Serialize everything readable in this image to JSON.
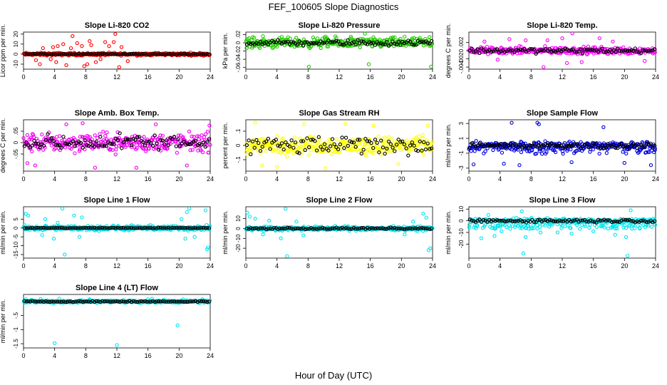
{
  "title": "FEF_100605  Slope Diagnostics",
  "xlabel": "Hour of Day (UTC)",
  "chart_data": [
    {
      "type": "scatter",
      "title": "Slope Li-820 CO2",
      "ylabel": "Licor ppm per min.",
      "color": "#ff0000",
      "xlim": [
        0,
        24
      ],
      "xticks": [
        0,
        4,
        8,
        12,
        16,
        20,
        24
      ],
      "ylim": [
        -15,
        22
      ],
      "yticks": [
        -10,
        0,
        10,
        20
      ],
      "band": 2,
      "outliers": [
        [
          1.6,
          -6
        ],
        [
          2.1,
          -10
        ],
        [
          3.5,
          -5
        ],
        [
          4.2,
          -8
        ],
        [
          5.5,
          -11
        ],
        [
          6.3,
          18
        ],
        [
          7.8,
          -12
        ],
        [
          8.2,
          -10
        ],
        [
          9.3,
          -8
        ],
        [
          10.5,
          12
        ],
        [
          11.8,
          20
        ],
        [
          12.3,
          -13
        ],
        [
          13.4,
          -7
        ],
        [
          3.8,
          7
        ],
        [
          4.4,
          8
        ],
        [
          5.1,
          10
        ],
        [
          6.9,
          11
        ],
        [
          8.7,
          9
        ],
        [
          11,
          8
        ],
        [
          11.6,
          12
        ],
        [
          2.5,
          6
        ],
        [
          6.1,
          6
        ],
        [
          7.5,
          8
        ],
        [
          12.6,
          7
        ],
        [
          9.9,
          -5
        ],
        [
          8.5,
          13
        ]
      ],
      "black_spread": 0.8
    },
    {
      "type": "scatter",
      "title": "Slope Li-820 Pressure",
      "ylabel": "kPa per min.",
      "color": "#22cc00",
      "xlim": [
        0,
        24
      ],
      "xticks": [
        0,
        4,
        8,
        12,
        16,
        20,
        24
      ],
      "ylim": [
        -0.064,
        0.026
      ],
      "yticks": [
        -0.06,
        -0.04,
        -0.02,
        0,
        0.02
      ],
      "band": 0.018,
      "outliers": [
        [
          8.1,
          -0.058
        ],
        [
          15.8,
          -0.052
        ],
        [
          23.8,
          -0.058
        ],
        [
          15.3,
          0.022
        ],
        [
          10.2,
          0.015
        ],
        [
          2.2,
          0.016
        ],
        [
          13.5,
          0.015
        ],
        [
          20.4,
          0.015
        ],
        [
          23.6,
          0.014
        ]
      ],
      "black_spread": 0.01
    },
    {
      "type": "scatter",
      "title": "Slope Li-820 Temp.",
      "ylabel": "degrees C per min.",
      "color": "#ff00ff",
      "xlim": [
        0,
        24
      ],
      "xticks": [
        0,
        4,
        8,
        12,
        16,
        20,
        24
      ],
      "ylim": [
        -0.0045,
        0.0045
      ],
      "yticks": [
        -0.004,
        -0.002,
        0,
        0.002
      ],
      "band": 0.0013,
      "outliers": [
        [
          13.3,
          0.0042
        ],
        [
          9.6,
          -0.004
        ],
        [
          12.6,
          -0.003
        ],
        [
          5.2,
          0.0028
        ],
        [
          16.8,
          0.003
        ],
        [
          10.1,
          0.0025
        ],
        [
          22.6,
          -0.0025
        ],
        [
          7.3,
          0.0025
        ],
        [
          2,
          0.0022
        ],
        [
          14.5,
          -0.0028
        ],
        [
          18.5,
          0.0022
        ],
        [
          3.7,
          -0.0022
        ],
        [
          12,
          0.003
        ]
      ],
      "black_spread": 0.0009
    },
    {
      "type": "scatter",
      "title": "Slope Amb. Box Temp.",
      "ylabel": "degrees C per min.",
      "color": "#ee00ee",
      "xlim": [
        0,
        24
      ],
      "xticks": [
        0,
        4,
        8,
        12,
        16,
        20,
        24
      ],
      "ylim": [
        -0.125,
        0.1
      ],
      "yticks": [
        -0.05,
        0,
        0.05
      ],
      "band": 0.06,
      "outliers": [
        [
          0.5,
          -0.09
        ],
        [
          1.5,
          -0.1
        ],
        [
          7.6,
          0.085
        ],
        [
          9.2,
          -0.11
        ],
        [
          21,
          -0.1
        ],
        [
          23.9,
          0.075
        ],
        [
          5.5,
          0.08
        ],
        [
          14.5,
          -0.11
        ],
        [
          17,
          0.08
        ]
      ],
      "black_spread": 0.05
    },
    {
      "type": "scatter",
      "title": "Slope Gas Stream RH",
      "ylabel": "percent per min.",
      "color": "#ffff00",
      "xlim": [
        0,
        24
      ],
      "xticks": [
        0,
        4,
        8,
        12,
        16,
        20,
        24
      ],
      "ylim": [
        -0.18,
        0.18
      ],
      "yticks": [
        -0.1,
        0,
        0.1
      ],
      "band": 0.09,
      "outliers": [
        [
          1.2,
          0.16
        ],
        [
          2.1,
          -0.14
        ],
        [
          4,
          -0.15
        ],
        [
          7.5,
          0.15
        ],
        [
          10.2,
          -0.16
        ],
        [
          12.8,
          0.15
        ],
        [
          16.4,
          0.14
        ],
        [
          19.6,
          -0.13
        ],
        [
          23.4,
          0.14
        ]
      ],
      "black_spread": 0.09
    },
    {
      "type": "scatter",
      "title": "Slope Sample Flow",
      "ylabel": "ml/min per min.",
      "color": "#0000dd",
      "xlim": [
        0,
        24
      ],
      "xticks": [
        0,
        4,
        8,
        12,
        16,
        20,
        24
      ],
      "ylim": [
        -3.4,
        3.5
      ],
      "yticks": [
        -3,
        -1,
        1,
        3
      ],
      "band": 0.8,
      "secondary_band": [
        -1.1,
        0.4
      ],
      "outliers": [
        [
          5.5,
          3.1
        ],
        [
          8.8,
          3.1
        ],
        [
          9,
          2.9
        ],
        [
          17.3,
          2.5
        ],
        [
          0.6,
          -2.5
        ],
        [
          4.5,
          -2.4
        ],
        [
          6.5,
          -2.6
        ],
        [
          23.4,
          -2.6
        ],
        [
          13.2,
          -2.2
        ],
        [
          20,
          -2.3
        ]
      ],
      "black_spread": 0.6
    },
    {
      "type": "scatter",
      "title": "Slope Line 1 Flow",
      "ylabel": "ml/min per min.",
      "color": "#00e5ee",
      "xlim": [
        0,
        24
      ],
      "xticks": [
        0,
        4,
        8,
        12,
        16,
        20,
        24
      ],
      "ylim": [
        -17,
        12
      ],
      "yticks": [
        -15,
        -10,
        -5,
        0,
        5
      ],
      "band": 2,
      "outliers": [
        [
          0.3,
          8
        ],
        [
          0.6,
          7
        ],
        [
          5,
          11
        ],
        [
          5.3,
          -15
        ],
        [
          6.5,
          7
        ],
        [
          7.2,
          -5
        ],
        [
          7.5,
          6
        ],
        [
          2.4,
          -4
        ],
        [
          2.8,
          5
        ],
        [
          20.8,
          -6
        ],
        [
          21,
          9
        ],
        [
          21.3,
          11
        ],
        [
          23.4,
          10
        ],
        [
          23.7,
          -11
        ],
        [
          23.6,
          -12
        ],
        [
          22,
          -5
        ],
        [
          20.3,
          5
        ],
        [
          3.9,
          -6
        ],
        [
          4.4,
          3
        ]
      ],
      "black_spread": 0.3
    },
    {
      "type": "scatter",
      "title": "Slope Line 2 Flow",
      "ylabel": "ml/min per min.",
      "color": "#00e5ee",
      "xlim": [
        0,
        24
      ],
      "xticks": [
        0,
        4,
        8,
        12,
        16,
        20,
        24
      ],
      "ylim": [
        -30,
        22
      ],
      "yticks": [
        -20,
        -10,
        0,
        10
      ],
      "band": 3,
      "outliers": [
        [
          0.2,
          16
        ],
        [
          0.5,
          12
        ],
        [
          1.2,
          10
        ],
        [
          2.2,
          -6
        ],
        [
          3,
          8
        ],
        [
          4.5,
          -10
        ],
        [
          5.1,
          20
        ],
        [
          5.3,
          -28
        ],
        [
          6.5,
          7
        ],
        [
          7.4,
          -7
        ],
        [
          22.8,
          15
        ],
        [
          23.2,
          11
        ],
        [
          23.5,
          -22
        ],
        [
          23.7,
          -20
        ],
        [
          21.5,
          7
        ],
        [
          20.4,
          -6
        ]
      ],
      "black_spread": 1.2
    },
    {
      "type": "scatter",
      "title": "Slope Line 3 Flow",
      "ylabel": "ml/min per min.",
      "color": "#00e5ee",
      "xlim": [
        0,
        24
      ],
      "xticks": [
        0,
        4,
        8,
        12,
        16,
        20,
        24
      ],
      "ylim": [
        -32,
        12
      ],
      "yticks": [
        -20,
        -10,
        0,
        10
      ],
      "band": 3,
      "secondary_band": [
        -7,
        -3
      ],
      "outliers": [
        [
          1.6,
          -15
        ],
        [
          3.3,
          -13
        ],
        [
          4.2,
          -9
        ],
        [
          6.8,
          8
        ],
        [
          7,
          -28
        ],
        [
          7.3,
          -14
        ],
        [
          11.4,
          -10
        ],
        [
          13.2,
          -11
        ],
        [
          16,
          -9
        ],
        [
          20.4,
          -30
        ],
        [
          20.8,
          9
        ],
        [
          20.2,
          -14
        ],
        [
          18.8,
          -12
        ],
        [
          9.2,
          -10
        ],
        [
          2.5,
          5
        ]
      ],
      "black_spread": 2
    },
    {
      "type": "scatter",
      "title": "Slope Line 4 (LT) Flow",
      "ylabel": "ml/min per min.",
      "color": "#00e5ee",
      "xlim": [
        0,
        24
      ],
      "xticks": [
        0,
        4,
        8,
        12,
        16,
        20,
        24
      ],
      "ylim": [
        -1.65,
        0.25
      ],
      "yticks": [
        -1.5,
        -1,
        -0.5
      ],
      "band": 0.08,
      "outliers": [
        [
          4,
          -1.48
        ],
        [
          12,
          -1.55
        ],
        [
          19.8,
          -0.85
        ],
        [
          4.6,
          0.1
        ],
        [
          8.5,
          0.08
        ],
        [
          16.5,
          0.1
        ],
        [
          0.3,
          0.08
        ],
        [
          23,
          0.08
        ],
        [
          2.2,
          0.09
        ]
      ],
      "black_spread": 0.03
    }
  ]
}
